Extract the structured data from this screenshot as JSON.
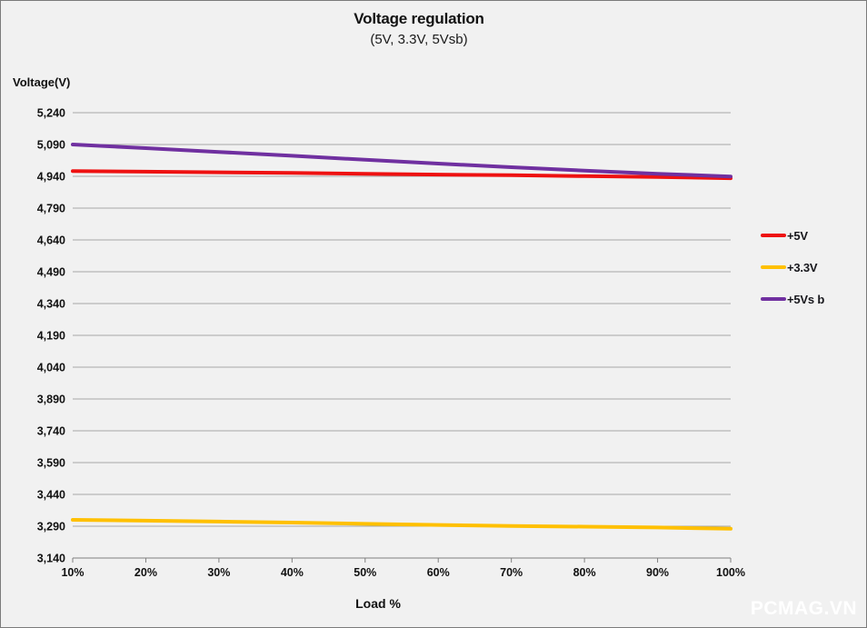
{
  "header": {
    "title": "Voltage regulation",
    "subtitle": "(5V, 3.3V, 5Vsb)"
  },
  "watermark": "PCMAG.VN",
  "chart_data": {
    "type": "line",
    "title": "Voltage regulation",
    "subtitle": "(5V, 3.3V, 5Vsb)",
    "xlabel": "Load %",
    "ylabel": "Voltage(V)",
    "x": [
      10,
      20,
      30,
      40,
      50,
      60,
      70,
      80,
      90,
      100
    ],
    "x_tick_labels": [
      "10%",
      "20%",
      "30%",
      "40%",
      "50%",
      "60%",
      "70%",
      "80%",
      "90%",
      "100%"
    ],
    "ylim": [
      3140,
      5240
    ],
    "ytick_step": 150,
    "y_tick_labels": [
      "3,140",
      "3,290",
      "3,440",
      "3,590",
      "3,740",
      "3,890",
      "4,040",
      "4,190",
      "4,340",
      "4,490",
      "4,640",
      "4,790",
      "4,940",
      "5,090",
      "5,240"
    ],
    "grid": "horizontal",
    "legend_position": "right",
    "series": [
      {
        "name": "+5V",
        "legend_label": "+5V",
        "color": "#ee1111",
        "values": [
          4965,
          4962,
          4959,
          4956,
          4952,
          4948,
          4945,
          4941,
          4937,
          4931
        ]
      },
      {
        "name": "+3.3V",
        "legend_label": "+3.3V",
        "color": "#ffc000",
        "values": [
          3320,
          3316,
          3312,
          3307,
          3301,
          3296,
          3291,
          3288,
          3284,
          3278
        ]
      },
      {
        "name": "+5Vsb",
        "legend_label": "+5Vs b",
        "color": "#7030a0",
        "values": [
          5090,
          5073,
          5055,
          5037,
          5018,
          5000,
          4983,
          4967,
          4952,
          4939
        ]
      }
    ],
    "colors": {
      "background": "#f1f1f1",
      "gridline": "#a6a6a6",
      "axis": "#808080",
      "text": "#111111",
      "watermark": "#ffffff"
    }
  }
}
